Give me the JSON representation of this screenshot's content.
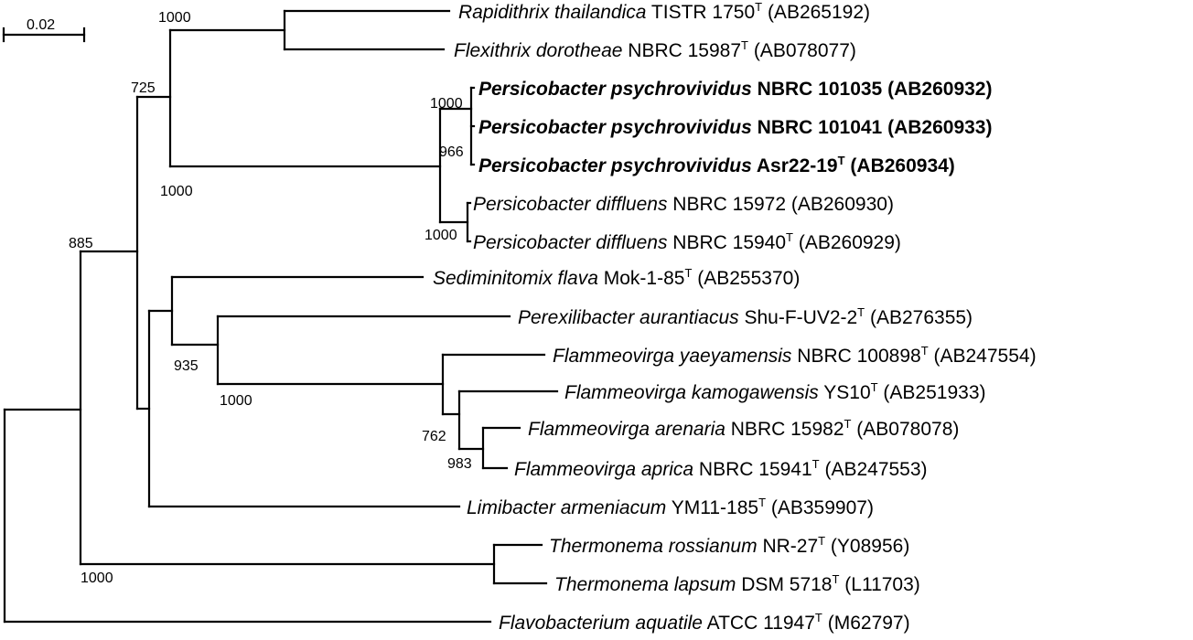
{
  "scale_bar": {
    "label": "0.02"
  },
  "bootstrap": {
    "b_rap_flex": "1000",
    "b_725": "725",
    "b_885": "885",
    "b_psy_a": "1000",
    "b_psy_b": "966",
    "b_pers": "1000",
    "b_diff": "1000",
    "b_935": "935",
    "b_flam": "1000",
    "b_762": "762",
    "b_983": "983",
    "b_thermo": "1000"
  },
  "taxa": [
    {
      "species": "Rapidithrix thailandica",
      "strain": "TISTR 1750",
      "type": "T",
      "accession": "(AB265192)",
      "bold": false
    },
    {
      "species": "Flexithrix dorotheae",
      "strain": "NBRC 15987",
      "type": "T",
      "accession": "(AB078077)",
      "bold": false
    },
    {
      "species": "Persicobacter psychrovividus",
      "strain": "NBRC 101035",
      "type": "",
      "accession": "(AB260932)",
      "bold": true
    },
    {
      "species": "Persicobacter psychrovividus",
      "strain": "NBRC 101041",
      "type": "",
      "accession": "(AB260933)",
      "bold": true
    },
    {
      "species": "Persicobacter psychrovividus",
      "strain": "Asr22-19",
      "type": "T",
      "accession": "(AB260934)",
      "bold": true
    },
    {
      "species": "Persicobacter diffluens",
      "strain": "NBRC 15972",
      "type": "",
      "accession": "(AB260930)",
      "bold": false
    },
    {
      "species": "Persicobacter diffluens",
      "strain": "NBRC 15940",
      "type": "T",
      "accession": "(AB260929)",
      "bold": false
    },
    {
      "species": "Sediminitomix flava",
      "strain": "Mok-1-85",
      "type": "T",
      "accession": "(AB255370)",
      "bold": false
    },
    {
      "species": "Perexilibacter aurantiacus",
      "strain": "Shu-F-UV2-2",
      "type": "T",
      "accession": "(AB276355)",
      "bold": false
    },
    {
      "species": "Flammeovirga yaeyamensis",
      "strain": "NBRC 100898",
      "type": "T",
      "accession": "(AB247554)",
      "bold": false
    },
    {
      "species": "Flammeovirga kamogawensis",
      "strain": "YS10",
      "type": "T",
      "accession": "(AB251933)",
      "bold": false
    },
    {
      "species": "Flammeovirga arenaria",
      "strain": "NBRC 15982",
      "type": "T",
      "accession": "(AB078078)",
      "bold": false
    },
    {
      "species": "Flammeovirga aprica",
      "strain": "NBRC 15941",
      "type": "T",
      "accession": "(AB247553)",
      "bold": false
    },
    {
      "species": "Limibacter armeniacum",
      "strain": "YM11-185",
      "type": "T",
      "accession": "(AB359907)",
      "bold": false
    },
    {
      "species": "Thermonema rossianum",
      "strain": "NR-27",
      "type": "T",
      "accession": "(Y08956)",
      "bold": false
    },
    {
      "species": "Thermonema lapsum",
      "strain": "DSM 5718",
      "type": "T",
      "accession": "(L11703)",
      "bold": false
    },
    {
      "species": "Flavobacterium aquatile",
      "strain": "ATCC 11947",
      "type": "T",
      "accession": "(M62797)",
      "bold": false
    }
  ]
}
